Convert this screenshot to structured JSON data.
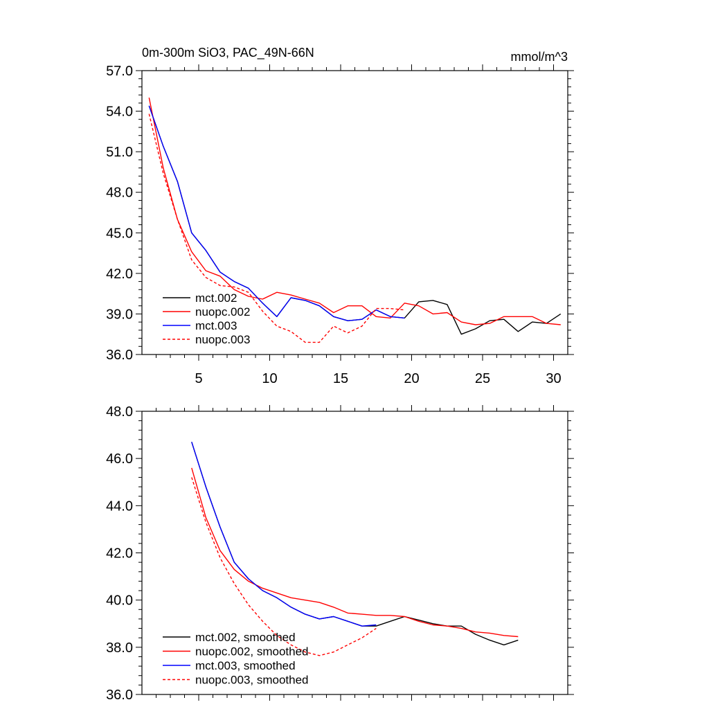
{
  "chart_data": [
    {
      "type": "line",
      "title": "0m-300m SiO3, PAC_49N-66N",
      "units": "mmol/m^3",
      "xlim": [
        1,
        31
      ],
      "ylim": [
        36.0,
        57.0
      ],
      "yticks": [
        "36.0",
        "39.0",
        "42.0",
        "45.0",
        "48.0",
        "51.0",
        "54.0",
        "57.0"
      ],
      "xticks": [
        "5",
        "10",
        "15",
        "20",
        "25",
        "30"
      ],
      "legend_position": "lower-left",
      "series": [
        {
          "name": "mct.002",
          "color": "#000000",
          "dashed": false,
          "x": [
            1.5,
            2.5,
            3.5,
            4.5,
            5.5,
            6.5,
            7.5,
            8.5,
            9.5,
            10.5,
            11.5,
            12.5,
            13.5,
            14.5,
            15.5,
            16.5,
            17.5,
            18.5,
            19.5,
            20.5,
            21.5,
            22.5,
            23.5,
            24.5,
            25.5,
            26.5,
            27.5,
            28.5,
            29.5,
            30.5
          ],
          "y": [
            54.4,
            51.4,
            48.8,
            45.0,
            43.7,
            42.1,
            41.4,
            40.9,
            39.8,
            38.8,
            40.2,
            40.0,
            39.6,
            38.8,
            38.5,
            38.6,
            39.3,
            38.8,
            38.7,
            39.9,
            40.0,
            39.7,
            37.5,
            37.9,
            38.5,
            38.6,
            37.7,
            38.4,
            38.3,
            39.0
          ]
        },
        {
          "name": "nuopc.002",
          "color": "#ff0000",
          "dashed": false,
          "x": [
            1.5,
            2.5,
            3.5,
            4.5,
            5.5,
            6.5,
            7.5,
            8.5,
            9.5,
            10.5,
            11.5,
            12.5,
            13.5,
            14.5,
            15.5,
            16.5,
            17.5,
            18.5,
            19.5,
            20.5,
            21.5,
            22.5,
            23.5,
            24.5,
            25.5,
            26.5,
            27.5,
            28.5,
            29.5,
            30.5
          ],
          "y": [
            55.0,
            49.8,
            46.0,
            43.6,
            42.2,
            41.8,
            40.8,
            40.3,
            40.1,
            40.6,
            40.4,
            40.1,
            39.8,
            39.1,
            39.6,
            39.6,
            38.8,
            38.7,
            39.8,
            39.6,
            39.0,
            39.1,
            38.4,
            38.2,
            38.3,
            38.8,
            38.8,
            38.8,
            38.3,
            38.2
          ]
        },
        {
          "name": "mct.003",
          "color": "#0000ff",
          "dashed": false,
          "x": [
            1.5,
            2.5,
            3.5,
            4.5,
            5.5,
            6.5,
            7.5,
            8.5,
            9.5,
            10.5,
            11.5,
            12.5,
            13.5,
            14.5,
            15.5,
            16.5,
            17.5,
            18.5,
            19.5
          ],
          "y": [
            54.4,
            51.4,
            48.8,
            45.0,
            43.7,
            42.1,
            41.4,
            40.9,
            39.8,
            38.8,
            40.2,
            40.0,
            39.6,
            38.8,
            38.5,
            38.6,
            39.3,
            38.8,
            38.7
          ]
        },
        {
          "name": "nuopc.003",
          "color": "#ff0000",
          "dashed": true,
          "x": [
            1.5,
            2.5,
            3.5,
            4.5,
            5.5,
            6.5,
            7.5,
            8.5,
            9.5,
            10.5,
            11.5,
            12.5,
            13.5,
            14.5,
            15.5,
            16.5,
            17.5,
            18.5,
            19.5
          ],
          "y": [
            53.8,
            49.4,
            46.0,
            43.0,
            41.7,
            41.1,
            41.0,
            40.6,
            39.2,
            38.1,
            37.7,
            36.9,
            36.9,
            38.1,
            37.6,
            38.1,
            39.4,
            39.4,
            39.3
          ]
        }
      ]
    },
    {
      "type": "line",
      "xlim": [
        1,
        31
      ],
      "ylim": [
        36.0,
        48.0
      ],
      "yticks": [
        "36.0",
        "38.0",
        "40.0",
        "42.0",
        "44.0",
        "46.0",
        "48.0"
      ],
      "legend_position": "lower-left",
      "series": [
        {
          "name": "mct.002, smoothed",
          "color": "#000000",
          "dashed": false,
          "x": [
            4.5,
            5.5,
            6.5,
            7.5,
            8.5,
            9.5,
            10.5,
            11.5,
            12.5,
            13.5,
            14.5,
            15.5,
            16.5,
            17.5,
            18.5,
            19.5,
            20.5,
            21.5,
            22.5,
            23.5,
            24.5,
            25.5,
            26.5,
            27.5
          ],
          "y": [
            46.7,
            44.8,
            43.1,
            41.6,
            40.9,
            40.4,
            40.1,
            39.7,
            39.4,
            39.2,
            39.3,
            39.1,
            38.9,
            38.9,
            39.1,
            39.3,
            39.15,
            39.0,
            38.9,
            38.9,
            38.55,
            38.3,
            38.1,
            38.3
          ]
        },
        {
          "name": "nuopc.002, smoothed",
          "color": "#ff0000",
          "dashed": false,
          "x": [
            4.5,
            5.5,
            6.5,
            7.5,
            8.5,
            9.5,
            10.5,
            11.5,
            12.5,
            13.5,
            14.5,
            15.5,
            16.5,
            17.5,
            18.5,
            19.5,
            20.5,
            21.5,
            22.5,
            23.5,
            24.5,
            25.5,
            26.5,
            27.5
          ],
          "y": [
            45.6,
            43.5,
            42.1,
            41.3,
            40.8,
            40.5,
            40.3,
            40.1,
            40.0,
            39.9,
            39.7,
            39.45,
            39.4,
            39.35,
            39.35,
            39.3,
            39.1,
            38.95,
            38.9,
            38.8,
            38.65,
            38.6,
            38.5,
            38.45
          ]
        },
        {
          "name": "mct.003, smoothed",
          "color": "#0000ff",
          "dashed": false,
          "x": [
            4.5,
            5.5,
            6.5,
            7.5,
            8.5,
            9.5,
            10.5,
            11.5,
            12.5,
            13.5,
            14.5,
            15.5,
            16.5,
            17.5
          ],
          "y": [
            46.7,
            44.8,
            43.1,
            41.6,
            40.9,
            40.4,
            40.1,
            39.7,
            39.4,
            39.2,
            39.3,
            39.1,
            38.9,
            38.95
          ]
        },
        {
          "name": "nuopc.003, smoothed",
          "color": "#ff0000",
          "dashed": true,
          "x": [
            4.5,
            5.5,
            6.5,
            7.5,
            8.5,
            9.5,
            10.5,
            11.5,
            12.5,
            13.5,
            14.5,
            15.5,
            16.5,
            17.5
          ],
          "y": [
            45.2,
            43.3,
            41.8,
            40.7,
            39.8,
            39.1,
            38.5,
            38.1,
            37.8,
            37.65,
            37.8,
            38.1,
            38.4,
            38.8
          ]
        }
      ]
    }
  ]
}
